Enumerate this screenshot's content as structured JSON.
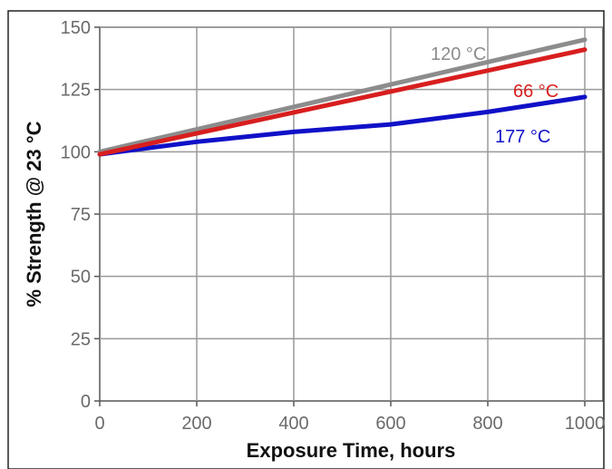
{
  "chart_data": {
    "type": "line",
    "title": "",
    "xlabel": "Exposure Time, hours",
    "ylabel": "% Strength @ 23 °C",
    "xlim": [
      0,
      1000
    ],
    "ylim": [
      0,
      150
    ],
    "xticks": [
      "0",
      "200",
      "400",
      "600",
      "800",
      "1000"
    ],
    "yticks": [
      "0",
      "25",
      "50",
      "75",
      "100",
      "125",
      "150"
    ],
    "grid": true,
    "series": [
      {
        "name": "120 °C",
        "color": "#8c8c8c",
        "x": [
          0,
          1000
        ],
        "y": [
          100,
          145
        ]
      },
      {
        "name": "66 °C",
        "color": "#d81e1e",
        "x": [
          0,
          1000
        ],
        "y": [
          99,
          141
        ]
      },
      {
        "name": "177 °C",
        "color": "#1010c8",
        "x": [
          0,
          200,
          400,
          600,
          800,
          1000
        ],
        "y": [
          99,
          104,
          108,
          111,
          116,
          122
        ]
      }
    ]
  }
}
